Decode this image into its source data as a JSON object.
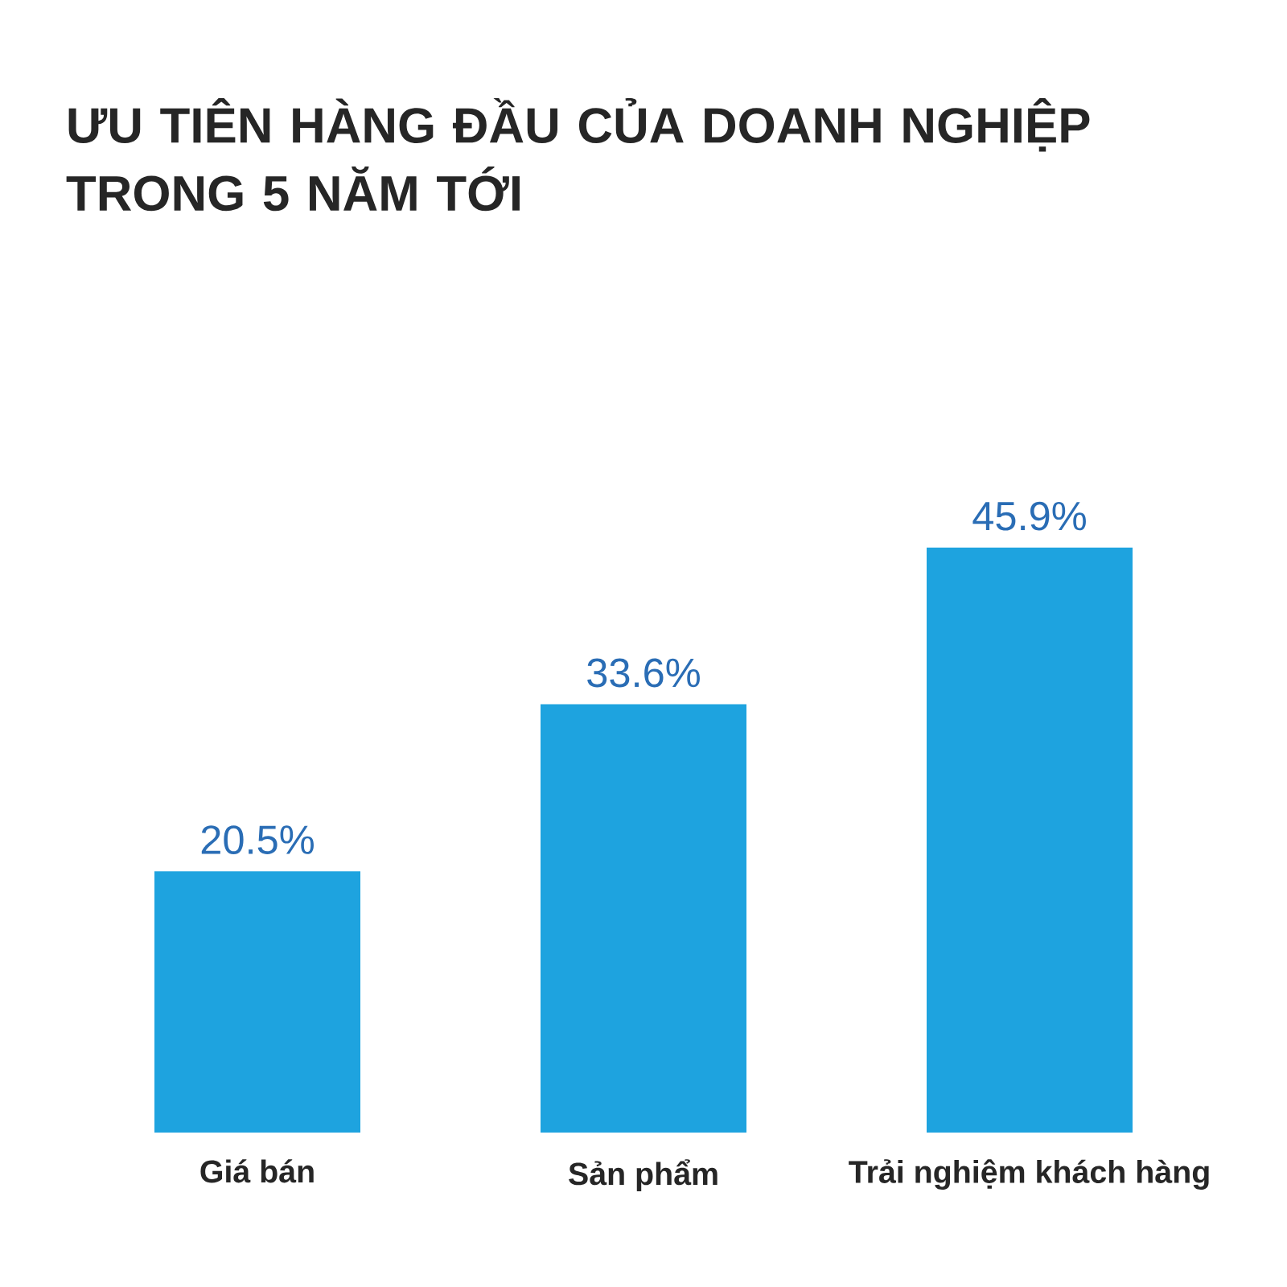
{
  "chart_data": {
    "type": "bar",
    "title": "ƯU TIÊN HÀNG ĐẦU CỦA DOANH NGHIỆP TRONG 5 NĂM TỚI",
    "categories": [
      "Giá bán",
      "Sản phẩm",
      "Trải nghiệm khách hàng"
    ],
    "values": [
      20.5,
      33.6,
      45.9
    ],
    "value_labels": [
      "20.5%",
      "33.6%",
      "45.9%"
    ],
    "color": "#1ea3df"
  }
}
